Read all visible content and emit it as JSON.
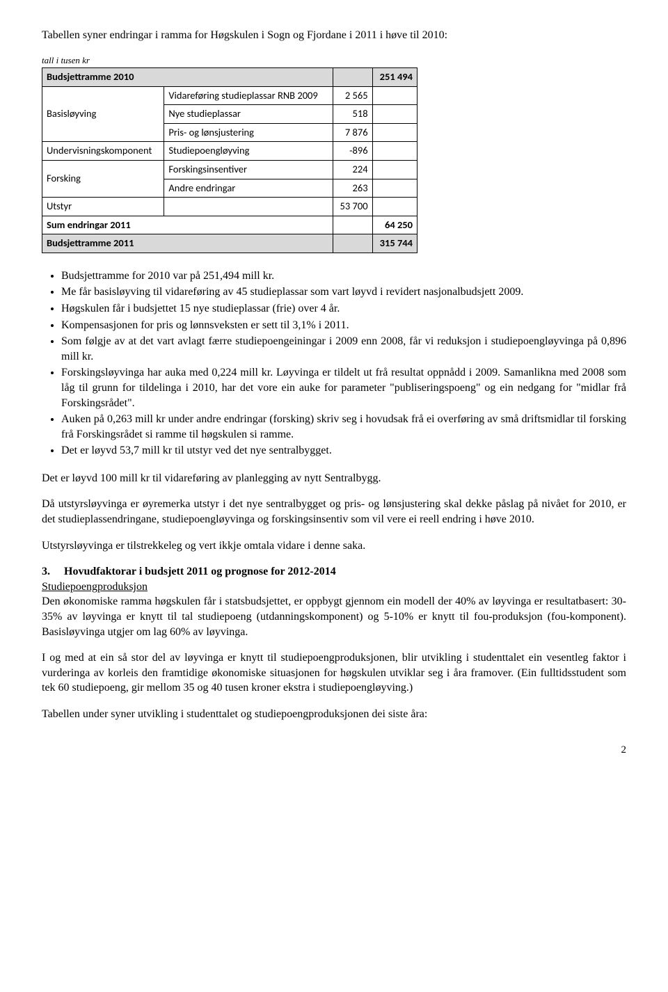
{
  "intro": "Tabellen syner endringar i ramma for Høgskulen i Sogn og Fjordane i 2011 i høve til 2010:",
  "table_caption": "tall i tusen kr",
  "table": {
    "rows": [
      {
        "shaded": true,
        "cells": [
          "Budsjettramme 2010",
          "",
          "",
          "251 494"
        ],
        "spans": [
          1,
          1,
          1,
          1
        ]
      },
      {
        "cells": [
          "Basisløyving",
          "Vidareføring studieplassar RNB 2009",
          "2 565",
          ""
        ],
        "rowspan0": 3
      },
      {
        "cells": [
          "Nye studieplassar",
          "518",
          ""
        ]
      },
      {
        "cells": [
          "Pris- og lønsjustering",
          "7 876",
          ""
        ]
      },
      {
        "cells": [
          "Undervisningskomponent",
          "Studiepoengløyving",
          "-896",
          ""
        ]
      },
      {
        "cells": [
          "Forsking",
          "Forskingsinsentiver",
          "224",
          ""
        ],
        "rowspan0": 2
      },
      {
        "cells": [
          "Andre endringar",
          "263",
          ""
        ]
      },
      {
        "cells": [
          "Utstyr",
          "",
          "53 700",
          ""
        ]
      },
      {
        "bold": true,
        "cells": [
          "Sum endringar 2011",
          "",
          "64 250"
        ],
        "span0": 2
      },
      {
        "shaded": true,
        "cells": [
          "Budsjettramme 2011",
          "",
          "",
          "315 744"
        ]
      }
    ]
  },
  "bullets": [
    "Budsjettramme for 2010 var på 251,494 mill kr.",
    "Me får basisløyving til vidareføring av 45 studieplassar som vart løyvd i revidert nasjonalbudsjett 2009.",
    "Høgskulen får i budsjettet 15 nye studieplassar (frie) over 4 år.",
    "Kompensasjonen for pris og lønnsveksten er sett til 3,1% i 2011.",
    "Som følgje av at det vart avlagt færre studiepoengeiningar i 2009 enn 2008, får vi reduksjon i studiepoengløyvinga på 0,896 mill kr.",
    "Forskingsløyvinga har auka med 0,224 mill kr. Løyvinga er tildelt ut frå resultat oppnådd i 2009. Samanlikna med 2008 som låg til grunn for tildelinga i 2010, har det vore ein auke for parameter \"publiseringspoeng\" og ein nedgang for \"midlar frå Forskingsrådet\".",
    "Auken på 0,263 mill kr under andre endringar (forsking) skriv seg i hovudsak frå ei overføring av små driftsmidlar til forsking frå Forskingsrådet si ramme til høgskulen si ramme.",
    "Det er løyvd 53,7 mill kr til utstyr ved det nye sentralbygget."
  ],
  "p1": "Det er løyvd 100 mill kr til vidareføring av planlegging av nytt Sentralbygg.",
  "p2": "Då utstyrsløyvinga er øyremerka utstyr i det nye sentralbygget og pris- og lønsjustering skal dekke påslag på nivået for 2010, er det studieplassendringane, studiepoengløyvinga og forskingsinsentiv som vil vere ei reell endring i høve 2010.",
  "p3": "Utstyrsløyvinga er tilstrekkeleg og vert ikkje omtala vidare i denne saka.",
  "section_num": "3.",
  "section_title": "Hovudfaktorar i budsjett 2011 og prognose for 2012-2014",
  "sub_underline": "Studiepoengproduksjon",
  "p4": "Den økonomiske ramma høgskulen får i statsbudsjettet, er oppbygt gjennom ein modell der 40% av løyvinga er resultatbasert: 30-35% av løyvinga er knytt til tal studiepoeng (utdanningskomponent) og 5-10% er knytt til fou-produksjon (fou-komponent). Basisløyvinga utgjer om lag 60% av løyvinga.",
  "p5": "I og med at ein så stor del av løyvinga er knytt til studiepoengproduksjonen, blir utvikling i studenttalet ein vesentleg faktor i vurderinga av korleis den framtidige økonomiske situasjonen for høgskulen utviklar seg i åra framover. (Ein fulltidsstudent som tek 60 studiepoeng, gir mellom 35 og 40 tusen kroner ekstra i studiepoengløyving.)",
  "p6": "Tabellen under syner utvikling i studenttalet og studiepoengproduksjonen dei siste åra:",
  "pagenum": "2"
}
